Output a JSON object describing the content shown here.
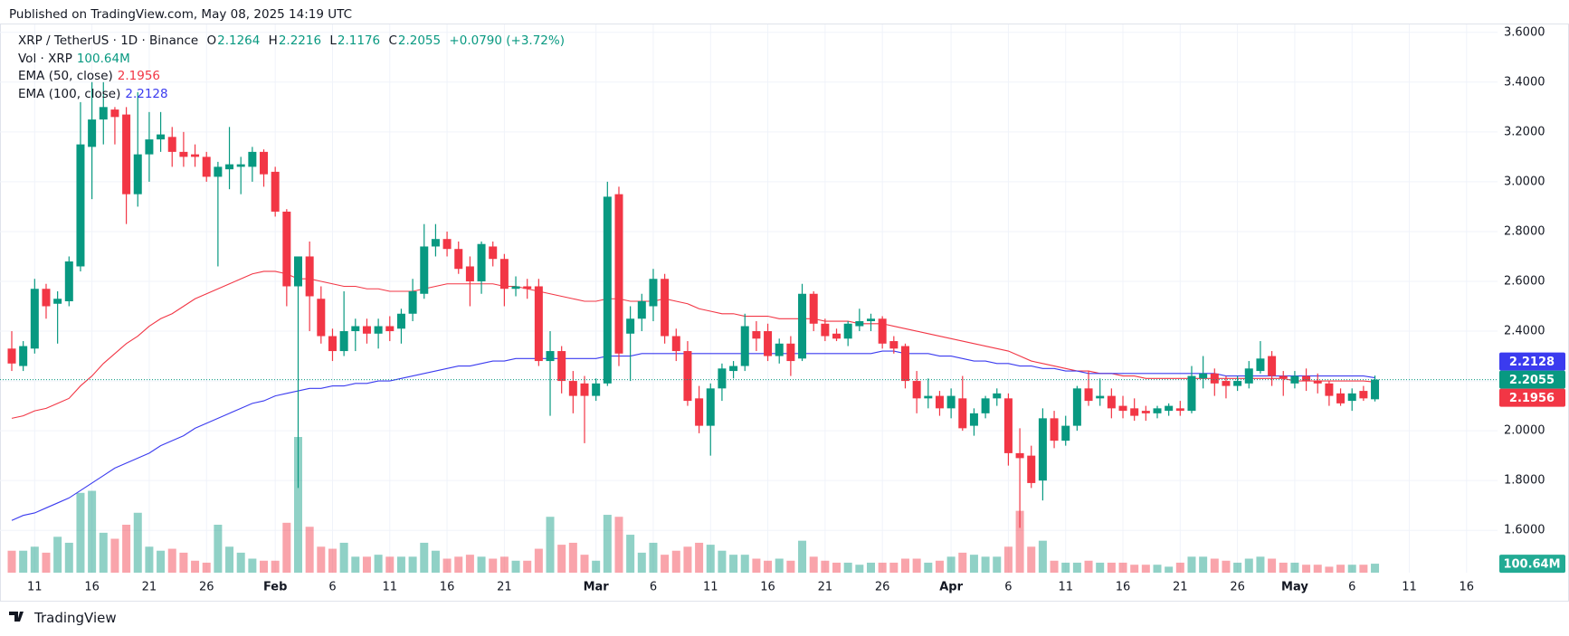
{
  "chart_data": {
    "type": "candlestick",
    "header": "Published on TradingView.com, May 08, 2025 14:19 UTC",
    "title": "XRP / TetherUS · 1D · Binance",
    "ohlc_labels": [
      "O",
      "H",
      "L",
      "C"
    ],
    "change_label": "+0.0790 (+3.72%)",
    "brand": "TradingView",
    "up_color": "#089981",
    "down_color": "#f23645",
    "x": [
      "2025-01-09",
      "2025-01-10",
      "2025-01-11",
      "2025-01-12",
      "2025-01-13",
      "2025-01-14",
      "2025-01-15",
      "2025-01-16",
      "2025-01-17",
      "2025-01-18",
      "2025-01-19",
      "2025-01-20",
      "2025-01-21",
      "2025-01-22",
      "2025-01-23",
      "2025-01-24",
      "2025-01-25",
      "2025-01-26",
      "2025-01-27",
      "2025-01-28",
      "2025-01-29",
      "2025-01-30",
      "2025-01-31",
      "2025-02-01",
      "2025-02-02",
      "2025-02-03",
      "2025-02-04",
      "2025-02-05",
      "2025-02-06",
      "2025-02-07",
      "2025-02-08",
      "2025-02-09",
      "2025-02-10",
      "2025-02-11",
      "2025-02-12",
      "2025-02-13",
      "2025-02-14",
      "2025-02-15",
      "2025-02-16",
      "2025-02-17",
      "2025-02-18",
      "2025-02-19",
      "2025-02-20",
      "2025-02-21",
      "2025-02-22",
      "2025-02-23",
      "2025-02-24",
      "2025-02-25",
      "2025-02-26",
      "2025-02-27",
      "2025-02-28",
      "2025-03-01",
      "2025-03-02",
      "2025-03-03",
      "2025-03-04",
      "2025-03-05",
      "2025-03-06",
      "2025-03-07",
      "2025-03-08",
      "2025-03-09",
      "2025-03-10",
      "2025-03-11",
      "2025-03-12",
      "2025-03-13",
      "2025-03-14",
      "2025-03-15",
      "2025-03-16",
      "2025-03-17",
      "2025-03-18",
      "2025-03-19",
      "2025-03-20",
      "2025-03-21",
      "2025-03-22",
      "2025-03-23",
      "2025-03-24",
      "2025-03-25",
      "2025-03-26",
      "2025-03-27",
      "2025-03-28",
      "2025-03-29",
      "2025-03-30",
      "2025-03-31",
      "2025-04-01",
      "2025-04-02",
      "2025-04-03",
      "2025-04-04",
      "2025-04-05",
      "2025-04-06",
      "2025-04-07",
      "2025-04-08",
      "2025-04-09",
      "2025-04-10",
      "2025-04-11",
      "2025-04-12",
      "2025-04-13",
      "2025-04-14",
      "2025-04-15",
      "2025-04-16",
      "2025-04-17",
      "2025-04-18",
      "2025-04-19",
      "2025-04-20",
      "2025-04-21",
      "2025-04-22",
      "2025-04-23",
      "2025-04-24",
      "2025-04-25",
      "2025-04-26",
      "2025-04-27",
      "2025-04-28",
      "2025-04-29",
      "2025-04-30",
      "2025-05-01",
      "2025-05-02",
      "2025-05-03",
      "2025-05-04",
      "2025-05-05",
      "2025-05-06",
      "2025-05-07",
      "2025-05-08"
    ],
    "open": [
      2.33,
      2.26,
      2.33,
      2.57,
      2.51,
      2.52,
      2.66,
      3.14,
      3.25,
      3.29,
      3.27,
      2.95,
      3.11,
      3.17,
      3.18,
      3.12,
      3.11,
      3.1,
      3.02,
      3.05,
      3.06,
      3.06,
      3.12,
      3.04,
      2.88,
      2.58,
      2.7,
      2.53,
      2.38,
      2.32,
      2.4,
      2.42,
      2.39,
      2.42,
      2.41,
      2.47,
      2.55,
      2.74,
      2.77,
      2.73,
      2.66,
      2.6,
      2.74,
      2.69,
      2.57,
      2.58,
      2.58,
      2.28,
      2.32,
      2.2,
      2.19,
      2.14,
      2.19,
      2.95,
      2.39,
      2.45,
      2.5,
      2.61,
      2.38,
      2.32,
      2.13,
      2.02,
      2.17,
      2.24,
      2.26,
      2.4,
      2.4,
      2.3,
      2.35,
      2.29,
      2.55,
      2.43,
      2.39,
      2.37,
      2.42,
      2.44,
      2.45,
      2.36,
      2.34,
      2.2,
      2.13,
      2.14,
      2.09,
      2.13,
      2.02,
      2.07,
      2.13,
      2.13,
      1.91,
      1.9,
      1.8,
      2.05,
      1.96,
      2.02,
      2.17,
      2.13,
      2.14,
      2.1,
      2.09,
      2.08,
      2.07,
      2.08,
      2.09,
      2.08,
      2.21,
      2.23,
      2.2,
      2.18,
      2.19,
      2.24,
      2.3,
      2.22,
      2.19,
      2.22,
      2.2,
      2.19,
      2.15,
      2.12,
      2.16,
      2.1264
    ],
    "high": [
      2.4,
      2.36,
      2.61,
      2.59,
      2.56,
      2.7,
      3.32,
      3.4,
      3.4,
      3.3,
      3.3,
      3.36,
      3.28,
      3.28,
      3.22,
      3.2,
      3.15,
      3.12,
      3.08,
      3.22,
      3.1,
      3.14,
      3.13,
      3.06,
      2.89,
      2.7,
      2.76,
      2.58,
      2.41,
      2.56,
      2.45,
      2.45,
      2.45,
      2.46,
      2.49,
      2.61,
      2.83,
      2.83,
      2.8,
      2.76,
      2.7,
      2.76,
      2.76,
      2.71,
      2.62,
      2.61,
      2.61,
      2.4,
      2.34,
      2.24,
      2.22,
      2.21,
      3.0,
      2.98,
      2.5,
      2.55,
      2.65,
      2.63,
      2.41,
      2.36,
      2.18,
      2.19,
      2.27,
      2.28,
      2.47,
      2.44,
      2.43,
      2.37,
      2.38,
      2.59,
      2.56,
      2.45,
      2.41,
      2.44,
      2.49,
      2.47,
      2.46,
      2.38,
      2.35,
      2.24,
      2.21,
      2.16,
      2.17,
      2.22,
      2.09,
      2.14,
      2.17,
      2.15,
      2.01,
      1.94,
      2.09,
      2.08,
      2.06,
      2.18,
      2.24,
      2.21,
      2.17,
      2.14,
      2.13,
      2.1,
      2.1,
      2.11,
      2.12,
      2.26,
      2.3,
      2.25,
      2.22,
      2.22,
      2.28,
      2.36,
      2.32,
      2.24,
      2.24,
      2.25,
      2.23,
      2.2,
      2.17,
      2.17,
      2.18,
      2.2216
    ],
    "low": [
      2.24,
      2.24,
      2.31,
      2.45,
      2.35,
      2.5,
      2.64,
      2.93,
      3.15,
      3.15,
      2.83,
      2.9,
      3.0,
      3.12,
      3.06,
      3.06,
      3.06,
      3.0,
      2.66,
      2.97,
      2.95,
      3.0,
      2.98,
      2.86,
      2.5,
      1.77,
      2.4,
      2.35,
      2.28,
      2.3,
      2.32,
      2.35,
      2.33,
      2.36,
      2.35,
      2.44,
      2.53,
      2.7,
      2.7,
      2.63,
      2.5,
      2.55,
      2.66,
      2.5,
      2.54,
      2.53,
      2.26,
      2.06,
      2.15,
      2.07,
      1.95,
      2.12,
      2.18,
      2.26,
      2.2,
      2.4,
      2.44,
      2.35,
      2.28,
      2.1,
      1.99,
      1.9,
      2.12,
      2.21,
      2.24,
      2.32,
      2.28,
      2.27,
      2.22,
      2.28,
      2.4,
      2.36,
      2.36,
      2.34,
      2.4,
      2.4,
      2.33,
      2.31,
      2.17,
      2.07,
      2.09,
      2.06,
      2.05,
      2.0,
      1.98,
      2.05,
      2.1,
      1.86,
      1.61,
      1.77,
      1.72,
      1.93,
      1.94,
      2.0,
      2.1,
      2.1,
      2.05,
      2.05,
      2.04,
      2.04,
      2.05,
      2.06,
      2.06,
      2.07,
      2.17,
      2.14,
      2.13,
      2.16,
      2.17,
      2.23,
      2.18,
      2.14,
      2.17,
      2.16,
      2.15,
      2.1,
      2.1,
      2.08,
      2.12,
      2.1176
    ],
    "close": [
      2.27,
      2.34,
      2.57,
      2.5,
      2.53,
      2.68,
      3.15,
      3.25,
      3.3,
      3.26,
      2.95,
      3.11,
      3.17,
      3.19,
      3.12,
      3.1,
      3.1,
      3.02,
      3.06,
      3.07,
      3.07,
      3.12,
      3.03,
      2.88,
      2.58,
      2.7,
      2.54,
      2.38,
      2.32,
      2.4,
      2.42,
      2.39,
      2.42,
      2.4,
      2.47,
      2.56,
      2.74,
      2.77,
      2.73,
      2.65,
      2.6,
      2.75,
      2.69,
      2.57,
      2.58,
      2.57,
      2.28,
      2.32,
      2.2,
      2.14,
      2.14,
      2.19,
      2.94,
      2.31,
      2.45,
      2.52,
      2.61,
      2.38,
      2.32,
      2.12,
      2.02,
      2.17,
      2.25,
      2.26,
      2.42,
      2.37,
      2.3,
      2.35,
      2.28,
      2.55,
      2.43,
      2.38,
      2.37,
      2.43,
      2.44,
      2.45,
      2.35,
      2.33,
      2.2,
      2.13,
      2.14,
      2.09,
      2.14,
      2.01,
      2.07,
      2.13,
      2.15,
      1.91,
      1.89,
      1.79,
      2.05,
      1.96,
      2.02,
      2.17,
      2.12,
      2.14,
      2.09,
      2.08,
      2.06,
      2.07,
      2.09,
      2.1,
      2.08,
      2.22,
      2.23,
      2.19,
      2.18,
      2.2,
      2.25,
      2.29,
      2.22,
      2.21,
      2.22,
      2.2,
      2.19,
      2.14,
      2.11,
      2.15,
      2.13,
      2.2055
    ],
    "volume": {
      "name": "Vol · XRP",
      "up_color": "rgba(8,153,129,0.45)",
      "down_color": "rgba(242,54,69,0.45)",
      "badge_color": "#22ab94",
      "last_label": "100.64M",
      "values": [
        246,
        246,
        291,
        224,
        402,
        335,
        894,
        917,
        447,
        380,
        537,
        671,
        291,
        246,
        268,
        224,
        134,
        112,
        537,
        291,
        224,
        157,
        134,
        134,
        559,
        1520,
        514,
        291,
        268,
        335,
        179,
        179,
        201,
        179,
        179,
        179,
        335,
        246,
        157,
        179,
        201,
        179,
        157,
        179,
        134,
        134,
        268,
        626,
        313,
        335,
        201,
        134,
        648,
        626,
        425,
        224,
        335,
        201,
        246,
        291,
        335,
        313,
        246,
        201,
        201,
        157,
        134,
        157,
        134,
        358,
        179,
        134,
        112,
        112,
        89,
        112,
        112,
        112,
        157,
        157,
        112,
        134,
        179,
        224,
        201,
        179,
        179,
        291,
        693,
        291,
        358,
        134,
        112,
        112,
        134,
        112,
        112,
        112,
        89,
        89,
        89,
        67,
        112,
        179,
        179,
        157,
        134,
        112,
        157,
        179,
        157,
        112,
        112,
        89,
        89,
        67,
        89,
        89,
        89,
        100.64
      ]
    },
    "series": [
      {
        "name": "EMA (50, close)",
        "color": "#f23645",
        "values": [
          2.05,
          2.06,
          2.08,
          2.09,
          2.11,
          2.13,
          2.18,
          2.22,
          2.27,
          2.31,
          2.35,
          2.38,
          2.42,
          2.45,
          2.47,
          2.5,
          2.53,
          2.55,
          2.57,
          2.59,
          2.61,
          2.63,
          2.64,
          2.64,
          2.63,
          2.61,
          2.61,
          2.6,
          2.59,
          2.58,
          2.58,
          2.57,
          2.57,
          2.56,
          2.56,
          2.56,
          2.57,
          2.58,
          2.59,
          2.59,
          2.59,
          2.59,
          2.59,
          2.58,
          2.58,
          2.57,
          2.56,
          2.55,
          2.54,
          2.53,
          2.52,
          2.52,
          2.53,
          2.53,
          2.52,
          2.52,
          2.52,
          2.53,
          2.52,
          2.51,
          2.49,
          2.48,
          2.47,
          2.47,
          2.46,
          2.46,
          2.46,
          2.45,
          2.45,
          2.45,
          2.45,
          2.44,
          2.44,
          2.44,
          2.43,
          2.43,
          2.43,
          2.42,
          2.41,
          2.4,
          2.39,
          2.38,
          2.37,
          2.36,
          2.35,
          2.34,
          2.33,
          2.32,
          2.3,
          2.28,
          2.27,
          2.26,
          2.25,
          2.24,
          2.24,
          2.23,
          2.23,
          2.22,
          2.22,
          2.21,
          2.21,
          2.21,
          2.21,
          2.21,
          2.21,
          2.21,
          2.21,
          2.21,
          2.21,
          2.21,
          2.21,
          2.21,
          2.2,
          2.2,
          2.2,
          2.2,
          2.2,
          2.2,
          2.2,
          2.1956
        ]
      },
      {
        "name": "EMA (100, close)",
        "color": "#3b3bef",
        "values": [
          1.64,
          1.66,
          1.67,
          1.69,
          1.71,
          1.73,
          1.76,
          1.79,
          1.82,
          1.85,
          1.87,
          1.89,
          1.91,
          1.94,
          1.96,
          1.98,
          2.01,
          2.03,
          2.05,
          2.07,
          2.09,
          2.11,
          2.12,
          2.14,
          2.15,
          2.16,
          2.17,
          2.17,
          2.18,
          2.18,
          2.19,
          2.19,
          2.2,
          2.2,
          2.21,
          2.22,
          2.23,
          2.24,
          2.25,
          2.26,
          2.26,
          2.27,
          2.28,
          2.28,
          2.29,
          2.29,
          2.29,
          2.29,
          2.29,
          2.29,
          2.29,
          2.29,
          2.3,
          2.3,
          2.3,
          2.31,
          2.31,
          2.31,
          2.31,
          2.31,
          2.31,
          2.31,
          2.31,
          2.31,
          2.31,
          2.31,
          2.31,
          2.31,
          2.31,
          2.31,
          2.31,
          2.31,
          2.31,
          2.31,
          2.31,
          2.31,
          2.32,
          2.32,
          2.31,
          2.31,
          2.31,
          2.3,
          2.3,
          2.29,
          2.28,
          2.28,
          2.27,
          2.27,
          2.26,
          2.26,
          2.25,
          2.25,
          2.24,
          2.24,
          2.23,
          2.23,
          2.23,
          2.23,
          2.23,
          2.23,
          2.23,
          2.23,
          2.23,
          2.23,
          2.23,
          2.23,
          2.22,
          2.22,
          2.22,
          2.22,
          2.22,
          2.22,
          2.22,
          2.22,
          2.22,
          2.22,
          2.22,
          2.22,
          2.22,
          2.2128
        ]
      }
    ],
    "ylim": [
      1.43,
      3.65
    ],
    "yticks": [
      {
        "value": 1.6,
        "label": "1.6000"
      },
      {
        "value": 1.8,
        "label": "1.8000"
      },
      {
        "value": 2.0,
        "label": "2.0000"
      },
      {
        "value": 2.2,
        "label": "2.2000"
      },
      {
        "value": 2.4,
        "label": "2.4000"
      },
      {
        "value": 2.6,
        "label": "2.6000"
      },
      {
        "value": 2.8,
        "label": "2.8000"
      },
      {
        "value": 3.0,
        "label": "3.0000"
      },
      {
        "value": 3.2,
        "label": "3.2000"
      },
      {
        "value": 3.4,
        "label": "3.4000"
      },
      {
        "value": 3.6,
        "label": "3.6000"
      }
    ],
    "xticks": [
      {
        "value": "2025-01-11",
        "label": "11"
      },
      {
        "value": "2025-01-16",
        "label": "16"
      },
      {
        "value": "2025-01-21",
        "label": "21"
      },
      {
        "value": "2025-01-26",
        "label": "26"
      },
      {
        "value": "2025-02-01",
        "label": "Feb"
      },
      {
        "value": "2025-02-06",
        "label": "6"
      },
      {
        "value": "2025-02-11",
        "label": "11"
      },
      {
        "value": "2025-02-16",
        "label": "16"
      },
      {
        "value": "2025-02-21",
        "label": "21"
      },
      {
        "value": "2025-03-01",
        "label": "Mar"
      },
      {
        "value": "2025-03-06",
        "label": "6"
      },
      {
        "value": "2025-03-11",
        "label": "11"
      },
      {
        "value": "2025-03-16",
        "label": "16"
      },
      {
        "value": "2025-03-21",
        "label": "21"
      },
      {
        "value": "2025-03-26",
        "label": "26"
      },
      {
        "value": "2025-04-01",
        "label": "Apr"
      },
      {
        "value": "2025-04-06",
        "label": "6"
      },
      {
        "value": "2025-04-11",
        "label": "11"
      },
      {
        "value": "2025-04-16",
        "label": "16"
      },
      {
        "value": "2025-04-21",
        "label": "21"
      },
      {
        "value": "2025-04-26",
        "label": "26"
      },
      {
        "value": "2025-05-01",
        "label": "May"
      },
      {
        "value": "2025-05-06",
        "label": "6"
      },
      {
        "value": "2025-05-11",
        "label": "11"
      },
      {
        "value": "2025-05-16",
        "label": "16"
      }
    ],
    "grid": true
  }
}
